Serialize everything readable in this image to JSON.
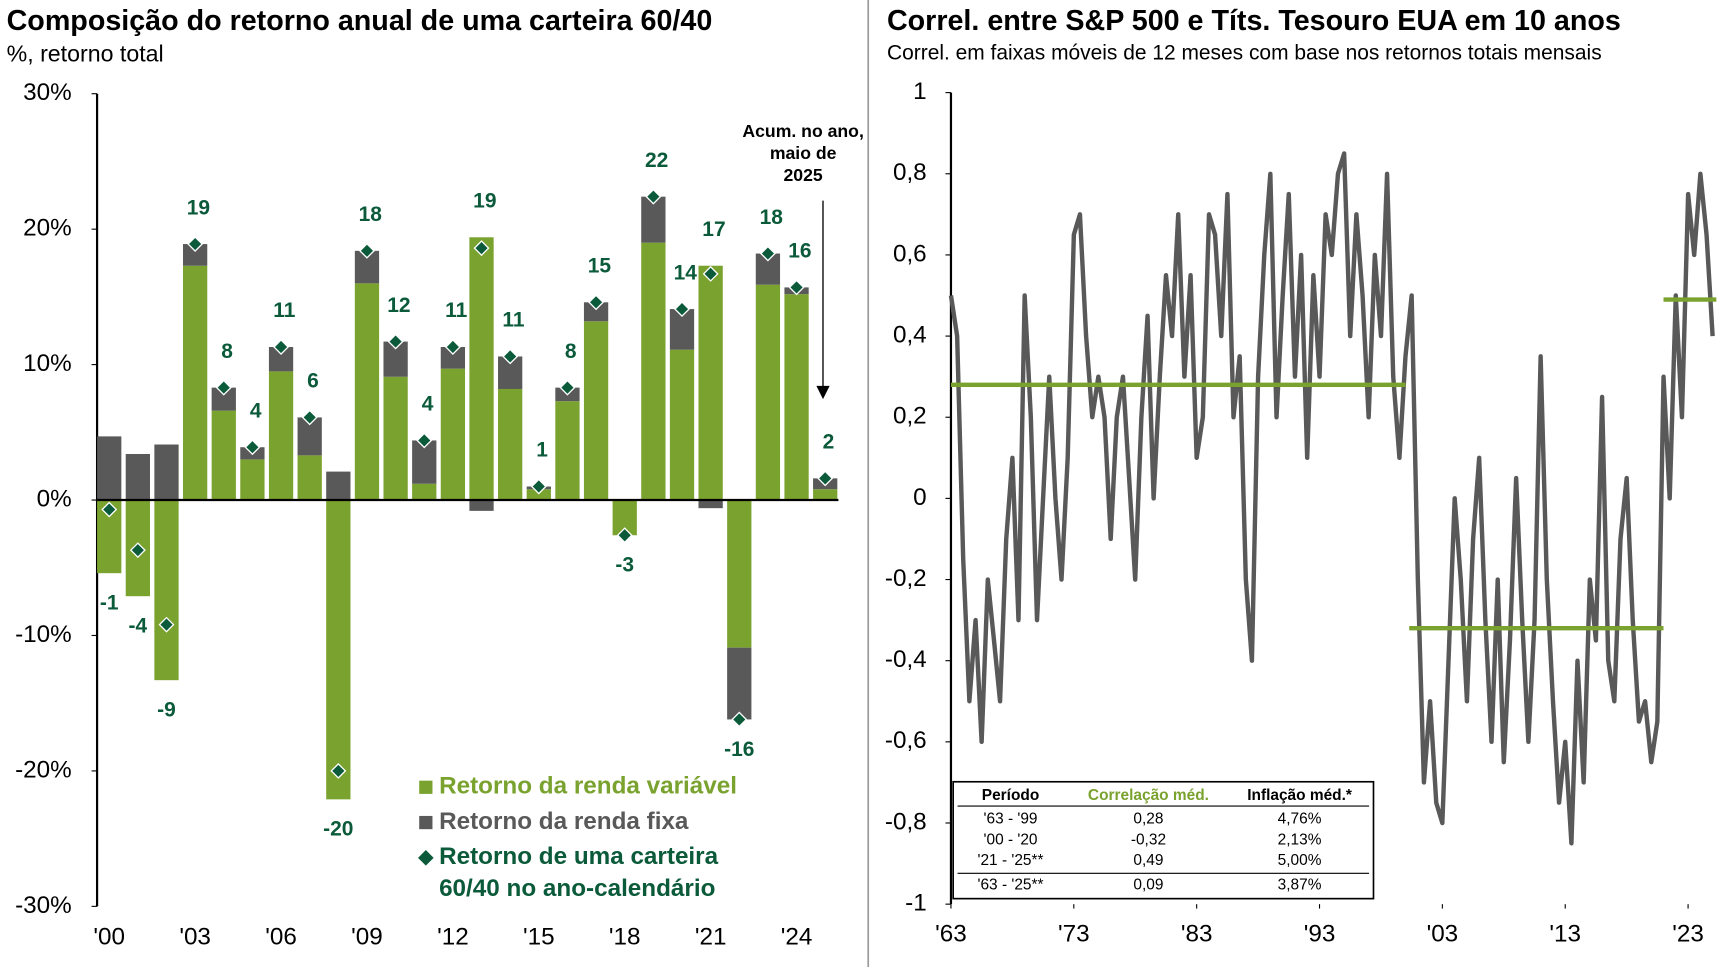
{
  "chart_data": [
    {
      "type": "bar",
      "stacked": true,
      "title": "Composição do retorno anual de uma carteira 60/40",
      "subtitle": "%, retorno total",
      "categories": [
        "'00",
        null,
        null,
        "'03",
        null,
        null,
        "'06",
        null,
        null,
        "'09",
        null,
        null,
        "'12",
        null,
        null,
        "'15",
        null,
        null,
        "'18",
        null,
        null,
        "'21",
        null,
        null,
        "'24",
        null
      ],
      "ylim": [
        -30,
        30
      ],
      "yticks": [
        {
          "value": -30,
          "label": "-30%"
        },
        {
          "value": -20,
          "label": "-20%"
        },
        {
          "value": -10,
          "label": "-10%"
        },
        {
          "value": 0,
          "label": "0%"
        },
        {
          "value": 10,
          "label": "10%"
        },
        {
          "value": 20,
          "label": "20%"
        },
        {
          "value": 30,
          "label": "30%"
        }
      ],
      "series": [
        {
          "name": "Retorno da renda variável",
          "color": "#7aa22e",
          "values": [
            -5.4,
            -7.1,
            -13.3,
            17.3,
            6.6,
            3.0,
            9.5,
            3.3,
            -22.1,
            16.0,
            9.1,
            1.2,
            9.7,
            19.4,
            8.2,
            0.8,
            7.3,
            13.2,
            -2.6,
            19.0,
            11.1,
            17.3,
            -10.9,
            15.9,
            15.2,
            0.8
          ]
        },
        {
          "name": "Retorno da renda fixa",
          "color": "#595959",
          "values": [
            4.7,
            3.4,
            4.1,
            1.6,
            1.7,
            0.9,
            1.8,
            2.8,
            2.1,
            2.4,
            2.6,
            3.2,
            1.6,
            -0.8,
            2.4,
            0.2,
            1.0,
            1.4,
            0.0,
            3.4,
            3.0,
            -0.6,
            -5.3,
            2.3,
            0.5,
            0.8
          ]
        }
      ],
      "totals": {
        "name": "Retorno de uma carteira 60/40 no ano-calendário",
        "color": "#0b5a3a",
        "values": [
          -0.7,
          -3.7,
          -9.2,
          18.9,
          8.3,
          3.9,
          11.3,
          6.1,
          -20.0,
          18.4,
          11.7,
          4.4,
          11.3,
          18.6,
          10.6,
          1.0,
          8.3,
          14.6,
          -2.6,
          22.4,
          14.1,
          16.7,
          -16.2,
          18.2,
          15.7,
          1.6
        ],
        "value_labels": [
          "-1",
          "-4",
          "-9",
          "19",
          "8",
          "4",
          "11",
          "6",
          "-20",
          "18",
          "12",
          "4",
          "11",
          "19",
          "11",
          "1",
          "8",
          "15",
          "-3",
          "22",
          "14",
          "17",
          "-16",
          "18",
          "16",
          "2"
        ]
      },
      "annotation": [
        "Acum. no ano,",
        "maio de",
        "2025"
      ]
    },
    {
      "type": "line",
      "title": "Correl. entre S&P 500 e Títs. Tesouro EUA em 10 anos",
      "subtitle": "Correl. em faixas móveis de 12 meses com base nos retornos totais mensais",
      "color": "#595959",
      "x": [
        1963,
        1963.5,
        1964,
        1964.5,
        1965,
        1965.5,
        1966,
        1966.5,
        1967,
        1967.5,
        1968,
        1968.5,
        1969,
        1969.5,
        1970,
        1970.5,
        1971,
        1971.5,
        1972,
        1972.5,
        1973,
        1973.5,
        1974,
        1974.5,
        1975,
        1975.5,
        1976,
        1976.5,
        1977,
        1977.5,
        1978,
        1978.5,
        1979,
        1979.5,
        1980,
        1980.5,
        1981,
        1981.5,
        1982,
        1982.5,
        1983,
        1983.5,
        1984,
        1984.5,
        1985,
        1985.5,
        1986,
        1986.5,
        1987,
        1987.5,
        1988,
        1988.5,
        1989,
        1989.5,
        1990,
        1990.5,
        1991,
        1991.5,
        1992,
        1992.5,
        1993,
        1993.5,
        1994,
        1994.5,
        1995,
        1995.5,
        1996,
        1996.5,
        1997,
        1997.5,
        1998,
        1998.5,
        1999,
        1999.5,
        2000,
        2000.5,
        2001,
        2001.5,
        2002,
        2002.5,
        2003,
        2003.5,
        2004,
        2004.5,
        2005,
        2005.5,
        2006,
        2006.5,
        2007,
        2007.5,
        2008,
        2008.5,
        2009,
        2009.5,
        2010,
        2010.5,
        2011,
        2011.5,
        2012,
        2012.5,
        2013,
        2013.5,
        2014,
        2014.5,
        2015,
        2015.5,
        2016,
        2016.5,
        2017,
        2017.5,
        2018,
        2018.5,
        2019,
        2019.5,
        2020,
        2020.5,
        2021,
        2021.5,
        2022,
        2022.5,
        2023,
        2023.5,
        2024,
        2024.5,
        2025
      ],
      "values": [
        0.5,
        0.4,
        -0.15,
        -0.5,
        -0.3,
        -0.6,
        -0.2,
        -0.35,
        -0.5,
        -0.1,
        0.1,
        -0.3,
        0.5,
        0.2,
        -0.3,
        0.0,
        0.3,
        0.0,
        -0.2,
        0.1,
        0.65,
        0.7,
        0.4,
        0.2,
        0.3,
        0.2,
        -0.1,
        0.2,
        0.3,
        0.05,
        -0.2,
        0.2,
        0.45,
        0.0,
        0.3,
        0.55,
        0.4,
        0.7,
        0.3,
        0.55,
        0.1,
        0.2,
        0.7,
        0.65,
        0.4,
        0.75,
        0.2,
        0.35,
        -0.2,
        -0.4,
        0.3,
        0.6,
        0.8,
        0.2,
        0.5,
        0.75,
        0.3,
        0.6,
        0.1,
        0.55,
        0.3,
        0.7,
        0.6,
        0.8,
        0.85,
        0.4,
        0.7,
        0.5,
        0.2,
        0.6,
        0.4,
        0.8,
        0.3,
        0.1,
        0.35,
        0.5,
        -0.2,
        -0.7,
        -0.5,
        -0.75,
        -0.8,
        -0.4,
        0.0,
        -0.2,
        -0.5,
        -0.1,
        0.1,
        -0.3,
        -0.6,
        -0.2,
        -0.65,
        -0.35,
        0.05,
        -0.3,
        -0.6,
        -0.3,
        0.35,
        -0.2,
        -0.5,
        -0.75,
        -0.6,
        -0.85,
        -0.4,
        -0.7,
        -0.2,
        -0.35,
        0.25,
        -0.4,
        -0.5,
        -0.1,
        0.05,
        -0.3,
        -0.55,
        -0.5,
        -0.65,
        -0.55,
        0.3,
        0.0,
        0.5,
        0.2,
        0.75,
        0.6,
        0.8,
        0.65,
        0.4
      ],
      "xlim": [
        1963,
        2025.5
      ],
      "ylim": [
        -1,
        1
      ],
      "xticks": [
        {
          "value": 1963,
          "label": "'63"
        },
        {
          "value": 1973,
          "label": "'73"
        },
        {
          "value": 1983,
          "label": "'83"
        },
        {
          "value": 1993,
          "label": "'93"
        },
        {
          "value": 2003,
          "label": "'03"
        },
        {
          "value": 2013,
          "label": "'13"
        },
        {
          "value": 2023,
          "label": "'23"
        }
      ],
      "yticks": [
        {
          "value": -1,
          "label": "-1"
        },
        {
          "value": -0.8,
          "label": "-0,8"
        },
        {
          "value": -0.6,
          "label": "-0,6"
        },
        {
          "value": -0.4,
          "label": "-0,4"
        },
        {
          "value": -0.2,
          "label": "-0,2"
        },
        0,
        {
          "value": 0.2,
          "label": "0,2"
        },
        {
          "value": 0.4,
          "label": "0,4"
        },
        {
          "value": 0.6,
          "label": "0,6"
        },
        {
          "value": 0.8,
          "label": "0,8"
        },
        1
      ],
      "averages": {
        "color": "#7aa22e",
        "items": [
          {
            "x": [
              1963,
              2000
            ],
            "value": 0.28
          },
          {
            "x": [
              2000.3,
              2021
            ],
            "value": -0.32
          },
          {
            "x": [
              2021,
              2025.3
            ],
            "value": 0.49
          }
        ]
      },
      "table": {
        "header": [
          "Período",
          "Correlação méd.",
          "Inflação méd.*"
        ],
        "rows": [
          [
            "'63 - '99",
            "0,28",
            "4,76%"
          ],
          [
            "'00 - '20",
            "-0,32",
            "2,13%"
          ],
          [
            "'21 - '25**",
            "0,49",
            "5,00%"
          ],
          [
            "'63 - '25**",
            "0,09",
            "3,87%"
          ]
        ]
      }
    }
  ]
}
